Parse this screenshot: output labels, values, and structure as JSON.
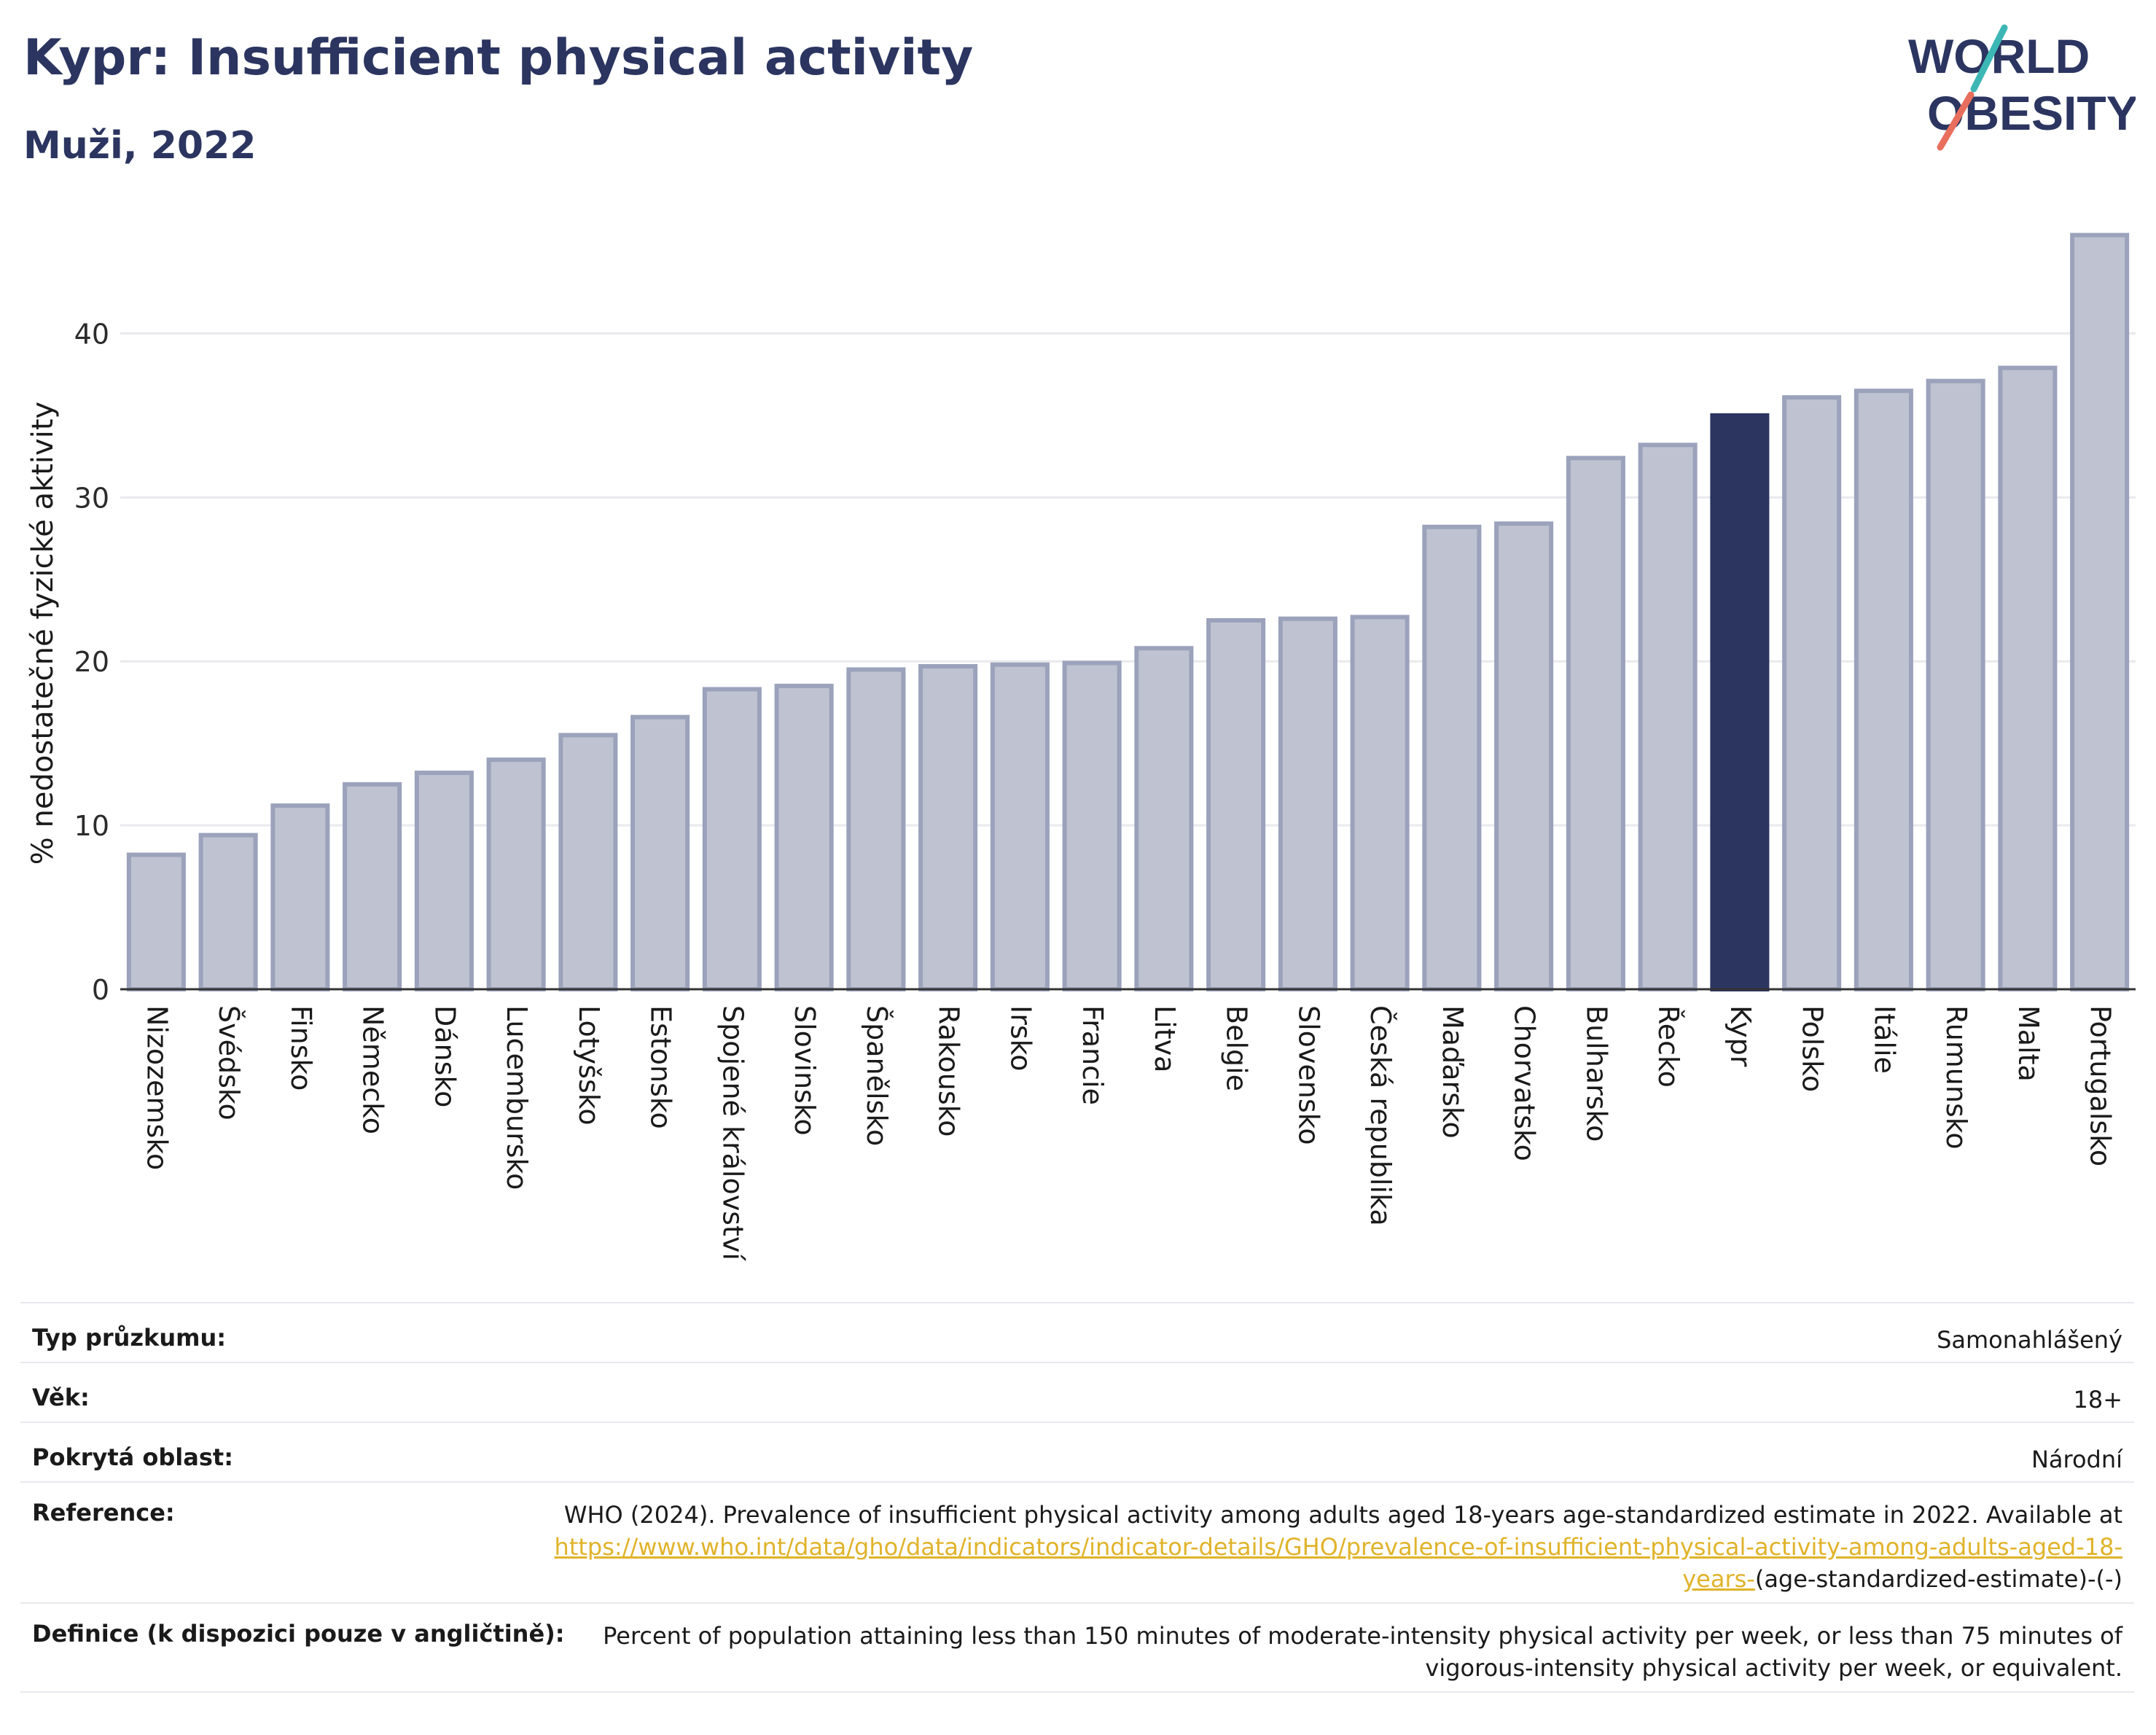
{
  "header": {
    "title": "Kypr: Insufficient physical activity",
    "subtitle": "Muži, 2022"
  },
  "logo": {
    "line1": "WORLD",
    "line2": "OBESITY"
  },
  "chart_data": {
    "type": "bar",
    "ylabel": "% nedostatečné fyzické aktivity",
    "xlabel": "",
    "ylim": [
      0,
      47
    ],
    "yticks": [
      0,
      10,
      20,
      30,
      40
    ],
    "grid": true,
    "highlight": "Kypr",
    "colors": {
      "bar": "#bfc3d1",
      "bar_border": "#9ba2bb",
      "highlight": "#2b3560",
      "grid": "#e9eaee",
      "axis": "#333333"
    },
    "categories": [
      "Nizozemsko",
      "Švédsko",
      "Finsko",
      "Německo",
      "Dánsko",
      "Lucembursko",
      "Lotyšsko",
      "Estonsko",
      "Spojené království",
      "Slovinsko",
      "Španělsko",
      "Rakousko",
      "Irsko",
      "Francie",
      "Litva",
      "Belgie",
      "Slovensko",
      "Česká republika",
      "Maďarsko",
      "Chorvatsko",
      "Bulharsko",
      "Řecko",
      "Kypr",
      "Polsko",
      "Itálie",
      "Rumunsko",
      "Malta",
      "Portugalsko"
    ],
    "values": [
      8.2,
      9.4,
      11.2,
      12.5,
      13.2,
      14.0,
      15.5,
      16.6,
      18.3,
      18.5,
      19.5,
      19.7,
      19.8,
      19.9,
      20.8,
      22.5,
      22.6,
      22.7,
      28.2,
      28.4,
      32.4,
      33.2,
      35.0,
      36.1,
      36.5,
      37.1,
      37.9,
      46.0
    ]
  },
  "info": {
    "survey_type_label": "Typ průzkumu:",
    "survey_type_value": "Samonahlášený",
    "age_label": "Věk:",
    "age_value": "18+",
    "area_label": "Pokrytá oblast:",
    "area_value": "Národní",
    "reference_label": "Reference:",
    "reference_text": "WHO (2024). Prevalence of insufficient physical activity among adults aged 18-years age-standardized estimate in 2022. Available at",
    "reference_link": "https://www.who.int/data/gho/data/indicators/indicator-details/GHO/prevalence-of-insufficient-physical-activity-among-adults-aged-18-years-",
    "reference_suffix": "(age-standardized-estimate)-(-)",
    "definition_label": "Definice (k dispozici pouze v angličtině):",
    "definition_value": "Percent of population attaining less than 150 minutes of moderate-intensity physical activity per week, or less than 75 minutes of vigorous-intensity physical activity per week, or equivalent."
  }
}
